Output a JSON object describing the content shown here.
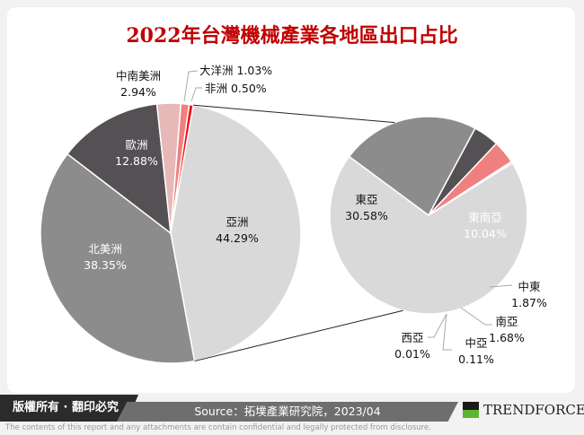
{
  "title": "2022年台灣機械產業各地區出口占比",
  "footer": {
    "copyright": "版權所有 · 翻印必究",
    "source": "Source：拓墣產業研究院，2023/04",
    "logo": "TRENDFORCE",
    "disclaimer": "The contents of this report and any attachments are contain confidential and legally protected from disclosure."
  },
  "chart_data": [
    {
      "type": "pie",
      "series": [
        {
          "name": "亞洲",
          "value": 44.29,
          "label": "44.29%",
          "color": "#d9d9d9"
        },
        {
          "name": "北美洲",
          "value": 38.35,
          "label": "38.35%",
          "color": "#8c8c8c"
        },
        {
          "name": "歐洲",
          "value": 12.88,
          "label": "12.88%",
          "color": "#545054"
        },
        {
          "name": "中南美洲",
          "value": 2.94,
          "label": "2.94%",
          "color": "#e6b9b8"
        },
        {
          "name": "大洋洲",
          "value": 1.03,
          "label": "1.03%",
          "color": "#f08080"
        },
        {
          "name": "非洲",
          "value": 0.5,
          "label": "0.50%",
          "color": "#ee1111"
        }
      ]
    },
    {
      "type": "pie",
      "series": [
        {
          "name": "東亞",
          "value": 30.58,
          "label": "30.58%",
          "color": "#d9d9d9"
        },
        {
          "name": "東南亞",
          "value": 10.04,
          "label": "10.04%",
          "color": "#8c8c8c"
        },
        {
          "name": "中東",
          "value": 1.87,
          "label": "1.87%",
          "color": "#545054"
        },
        {
          "name": "南亞",
          "value": 1.68,
          "label": "1.68%",
          "color": "#f08080"
        },
        {
          "name": "中亞",
          "value": 0.11,
          "label": "0.11%",
          "color": "#ee1111"
        },
        {
          "name": "西亞",
          "value": 0.01,
          "label": "0.01%",
          "color": "#e6b9b8"
        }
      ]
    }
  ]
}
